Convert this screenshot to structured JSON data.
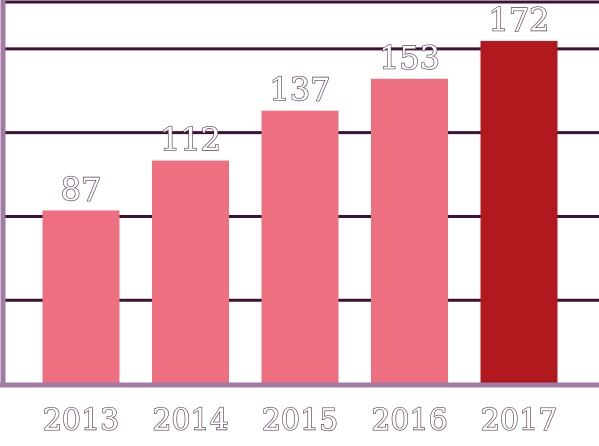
{
  "chart_data": {
    "type": "bar",
    "categories": [
      "2013",
      "2014",
      "2015",
      "2016",
      "2017"
    ],
    "values": [
      87,
      112,
      137,
      153,
      172
    ],
    "title": "",
    "xlabel": "",
    "ylabel": "",
    "ylim": [
      0,
      190
    ],
    "yticks": [
      0,
      42,
      84,
      126,
      168
    ],
    "grid": true,
    "legend": "none",
    "colors": {
      "bar": "#ed6f80",
      "highlight_bar": "#b2191f",
      "grid": "#3c1236",
      "axis": "#a27ba5"
    },
    "highlight_category": "2017"
  }
}
